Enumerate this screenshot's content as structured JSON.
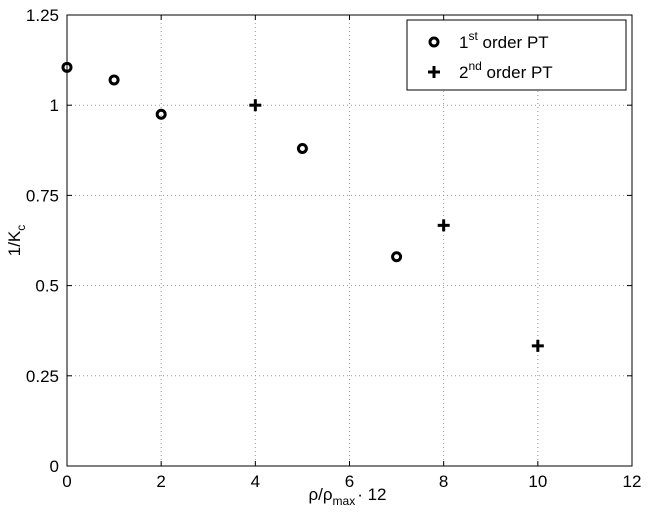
{
  "chart_data": {
    "type": "scatter",
    "xlabel": {
      "main": "ρ/ρ",
      "sub": "max",
      "tail": "· 12"
    },
    "ylabel": {
      "main": "1/K",
      "sub": "c"
    },
    "xlim": [
      0,
      12
    ],
    "ylim": [
      0,
      1.25
    ],
    "xticks": [
      "0",
      "2",
      "4",
      "6",
      "8",
      "10",
      "12"
    ],
    "yticks": [
      "0",
      "0.25",
      "0.5",
      "0.75",
      "1",
      "1.25"
    ],
    "grid": true,
    "legend_position": "top-right",
    "series": [
      {
        "name": {
          "pre": "1",
          "sup": "st",
          "post": " order PT"
        },
        "marker": "circle",
        "points": [
          {
            "x": 0,
            "y": 1.105
          },
          {
            "x": 1,
            "y": 1.07
          },
          {
            "x": 2,
            "y": 0.975
          },
          {
            "x": 5,
            "y": 0.88
          },
          {
            "x": 7,
            "y": 0.58
          }
        ]
      },
      {
        "name": {
          "pre": "2",
          "sup": "nd",
          "post": " order PT"
        },
        "marker": "plus",
        "points": [
          {
            "x": 4,
            "y": 1.0
          },
          {
            "x": 8,
            "y": 0.667
          },
          {
            "x": 10,
            "y": 0.333
          }
        ]
      }
    ]
  }
}
